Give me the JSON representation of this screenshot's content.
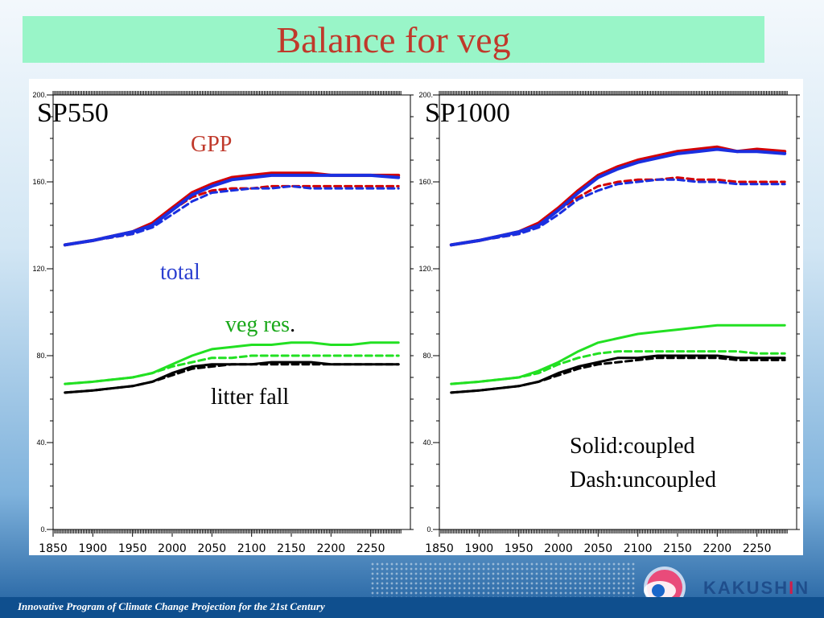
{
  "slide": {
    "title": "Balance for veg",
    "footer": "Innovative Program of Climate Change Projection for the 21st Century",
    "logo": {
      "text_a": "KAKUSH",
      "text_i": "I",
      "text_b": "N",
      "icon": "kakushin-logo-icon"
    },
    "colors": {
      "title_bg": "#99f5c8",
      "title_text": "#c0392b",
      "footer_bg": "#0f4f8e"
    }
  },
  "annotations": {
    "gpp": "GPP",
    "total": "total",
    "veg_res": "veg res",
    "veg_res_dot": ".",
    "litter": "litter fall",
    "legend_solid": "Solid:coupled",
    "legend_dash": "Dash:uncoupled"
  },
  "chart_data": [
    {
      "type": "line",
      "label": "SP550",
      "xlim": [
        1850,
        2300
      ],
      "ylim": [
        0,
        200
      ],
      "x_ticks": [
        1850,
        1900,
        1950,
        2000,
        2050,
        2100,
        2150,
        2200,
        2250
      ],
      "y_ticks": [
        0,
        40,
        80,
        120,
        160,
        200
      ],
      "y_tick_labels": [
        "0.",
        "40.",
        "80.",
        "120.",
        "160.",
        "200."
      ],
      "x": [
        1865,
        1900,
        1950,
        1975,
        2000,
        2025,
        2050,
        2075,
        2100,
        2125,
        2150,
        2175,
        2200,
        2225,
        2250,
        2285
      ],
      "series": [
        {
          "key": "gpp",
          "color": "#d40000",
          "dash": false,
          "width": 4,
          "values": [
            131,
            133,
            137,
            141,
            148,
            155,
            159,
            162,
            163,
            164,
            164,
            164,
            163,
            163,
            163,
            163
          ]
        },
        {
          "key": "gpp",
          "color": "#d40000",
          "dash": true,
          "width": 3,
          "values": [
            131,
            133,
            136,
            140,
            147,
            153,
            156,
            157,
            157,
            158,
            158,
            158,
            158,
            158,
            158,
            158
          ]
        },
        {
          "key": "total",
          "color": "#1a2fe0",
          "dash": false,
          "width": 4,
          "values": [
            131,
            133,
            137,
            140,
            147,
            154,
            158,
            161,
            162,
            163,
            163,
            163,
            163,
            163,
            163,
            162
          ]
        },
        {
          "key": "total",
          "color": "#1a2fe0",
          "dash": true,
          "width": 3,
          "values": [
            131,
            133,
            136,
            139,
            145,
            151,
            155,
            156,
            157,
            157,
            158,
            157,
            157,
            157,
            157,
            157
          ]
        },
        {
          "key": "veg_res",
          "color": "#22e022",
          "dash": false,
          "width": 3,
          "values": [
            67,
            68,
            70,
            72,
            76,
            80,
            83,
            84,
            85,
            85,
            86,
            86,
            85,
            85,
            86,
            86
          ]
        },
        {
          "key": "veg_res",
          "color": "#22e022",
          "dash": true,
          "width": 3,
          "values": [
            67,
            68,
            70,
            72,
            75,
            77,
            79,
            79,
            80,
            80,
            80,
            80,
            80,
            80,
            80,
            80
          ]
        },
        {
          "key": "litter",
          "color": "#000000",
          "dash": false,
          "width": 3,
          "values": [
            63,
            64,
            66,
            68,
            72,
            75,
            76,
            76,
            76,
            77,
            77,
            77,
            76,
            76,
            76,
            76
          ]
        },
        {
          "key": "litter",
          "color": "#000000",
          "dash": true,
          "width": 3,
          "values": [
            63,
            64,
            66,
            68,
            71,
            74,
            75,
            76,
            76,
            76,
            76,
            76,
            76,
            76,
            76,
            76
          ]
        }
      ]
    },
    {
      "type": "line",
      "label": "SP1000",
      "xlim": [
        1850,
        2300
      ],
      "ylim": [
        0,
        200
      ],
      "x_ticks": [
        1850,
        1900,
        1950,
        2000,
        2050,
        2100,
        2150,
        2200,
        2250
      ],
      "y_ticks": [
        0,
        40,
        80,
        120,
        160,
        200
      ],
      "y_tick_labels": [
        "0.",
        "40.",
        "80.",
        "120.",
        "160.",
        "200."
      ],
      "x": [
        1865,
        1900,
        1950,
        1975,
        2000,
        2025,
        2050,
        2075,
        2100,
        2125,
        2150,
        2175,
        2200,
        2225,
        2250,
        2285
      ],
      "series": [
        {
          "key": "gpp",
          "color": "#d40000",
          "dash": false,
          "width": 4,
          "values": [
            131,
            133,
            137,
            141,
            148,
            156,
            163,
            167,
            170,
            172,
            174,
            175,
            176,
            174,
            175,
            174
          ]
        },
        {
          "key": "gpp",
          "color": "#d40000",
          "dash": true,
          "width": 3,
          "values": [
            131,
            133,
            136,
            140,
            147,
            153,
            158,
            160,
            161,
            161,
            162,
            161,
            161,
            160,
            160,
            160
          ]
        },
        {
          "key": "total",
          "color": "#1a2fe0",
          "dash": false,
          "width": 4,
          "values": [
            131,
            133,
            137,
            140,
            147,
            155,
            162,
            166,
            169,
            171,
            173,
            174,
            175,
            174,
            174,
            173
          ]
        },
        {
          "key": "total",
          "color": "#1a2fe0",
          "dash": true,
          "width": 3,
          "values": [
            131,
            133,
            136,
            139,
            145,
            152,
            156,
            159,
            160,
            161,
            161,
            160,
            160,
            159,
            159,
            159
          ]
        },
        {
          "key": "veg_res",
          "color": "#22e022",
          "dash": false,
          "width": 3,
          "values": [
            67,
            68,
            70,
            73,
            77,
            82,
            86,
            88,
            90,
            91,
            92,
            93,
            94,
            94,
            94,
            94
          ]
        },
        {
          "key": "veg_res",
          "color": "#22e022",
          "dash": true,
          "width": 3,
          "values": [
            67,
            68,
            70,
            72,
            76,
            79,
            81,
            82,
            82,
            82,
            82,
            82,
            82,
            82,
            81,
            81
          ]
        },
        {
          "key": "litter",
          "color": "#000000",
          "dash": false,
          "width": 3,
          "values": [
            63,
            64,
            66,
            68,
            72,
            75,
            77,
            79,
            79,
            80,
            80,
            80,
            80,
            79,
            79,
            79
          ]
        },
        {
          "key": "litter",
          "color": "#000000",
          "dash": true,
          "width": 3,
          "values": [
            63,
            64,
            66,
            68,
            71,
            74,
            76,
            77,
            78,
            79,
            79,
            79,
            79,
            78,
            78,
            78
          ]
        }
      ]
    }
  ]
}
